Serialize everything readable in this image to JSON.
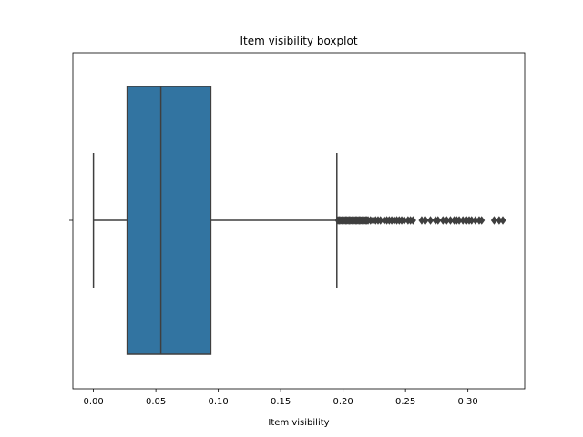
{
  "chart_data": {
    "type": "boxplot",
    "title": "Item visibility boxplot",
    "xlabel": "Item visibility",
    "ylabel": "",
    "xlim": [
      -0.0165,
      0.3455
    ],
    "xticks": [
      0.0,
      0.05,
      0.1,
      0.15,
      0.2,
      0.25,
      0.3
    ],
    "xtick_labels": [
      "0.00",
      "0.05",
      "0.10",
      "0.15",
      "0.20",
      "0.25",
      "0.30"
    ],
    "orientation": "horizontal",
    "grid": false,
    "box_color": "#3274a1",
    "line_color": "#3f3f3f",
    "box": {
      "whisker_low": 0.0,
      "q1": 0.027,
      "median": 0.054,
      "q3": 0.094,
      "whisker_high": 0.195
    },
    "outliers": [
      0.196,
      0.197,
      0.198,
      0.199,
      0.2,
      0.201,
      0.202,
      0.203,
      0.204,
      0.205,
      0.206,
      0.207,
      0.208,
      0.209,
      0.21,
      0.211,
      0.212,
      0.213,
      0.214,
      0.215,
      0.216,
      0.217,
      0.218,
      0.219,
      0.22,
      0.222,
      0.224,
      0.226,
      0.228,
      0.23,
      0.233,
      0.235,
      0.237,
      0.239,
      0.241,
      0.243,
      0.245,
      0.247,
      0.249,
      0.252,
      0.254,
      0.256,
      0.263,
      0.266,
      0.27,
      0.274,
      0.276,
      0.28,
      0.283,
      0.286,
      0.289,
      0.291,
      0.293,
      0.296,
      0.299,
      0.301,
      0.303,
      0.306,
      0.309,
      0.311,
      0.321,
      0.325,
      0.328
    ]
  }
}
